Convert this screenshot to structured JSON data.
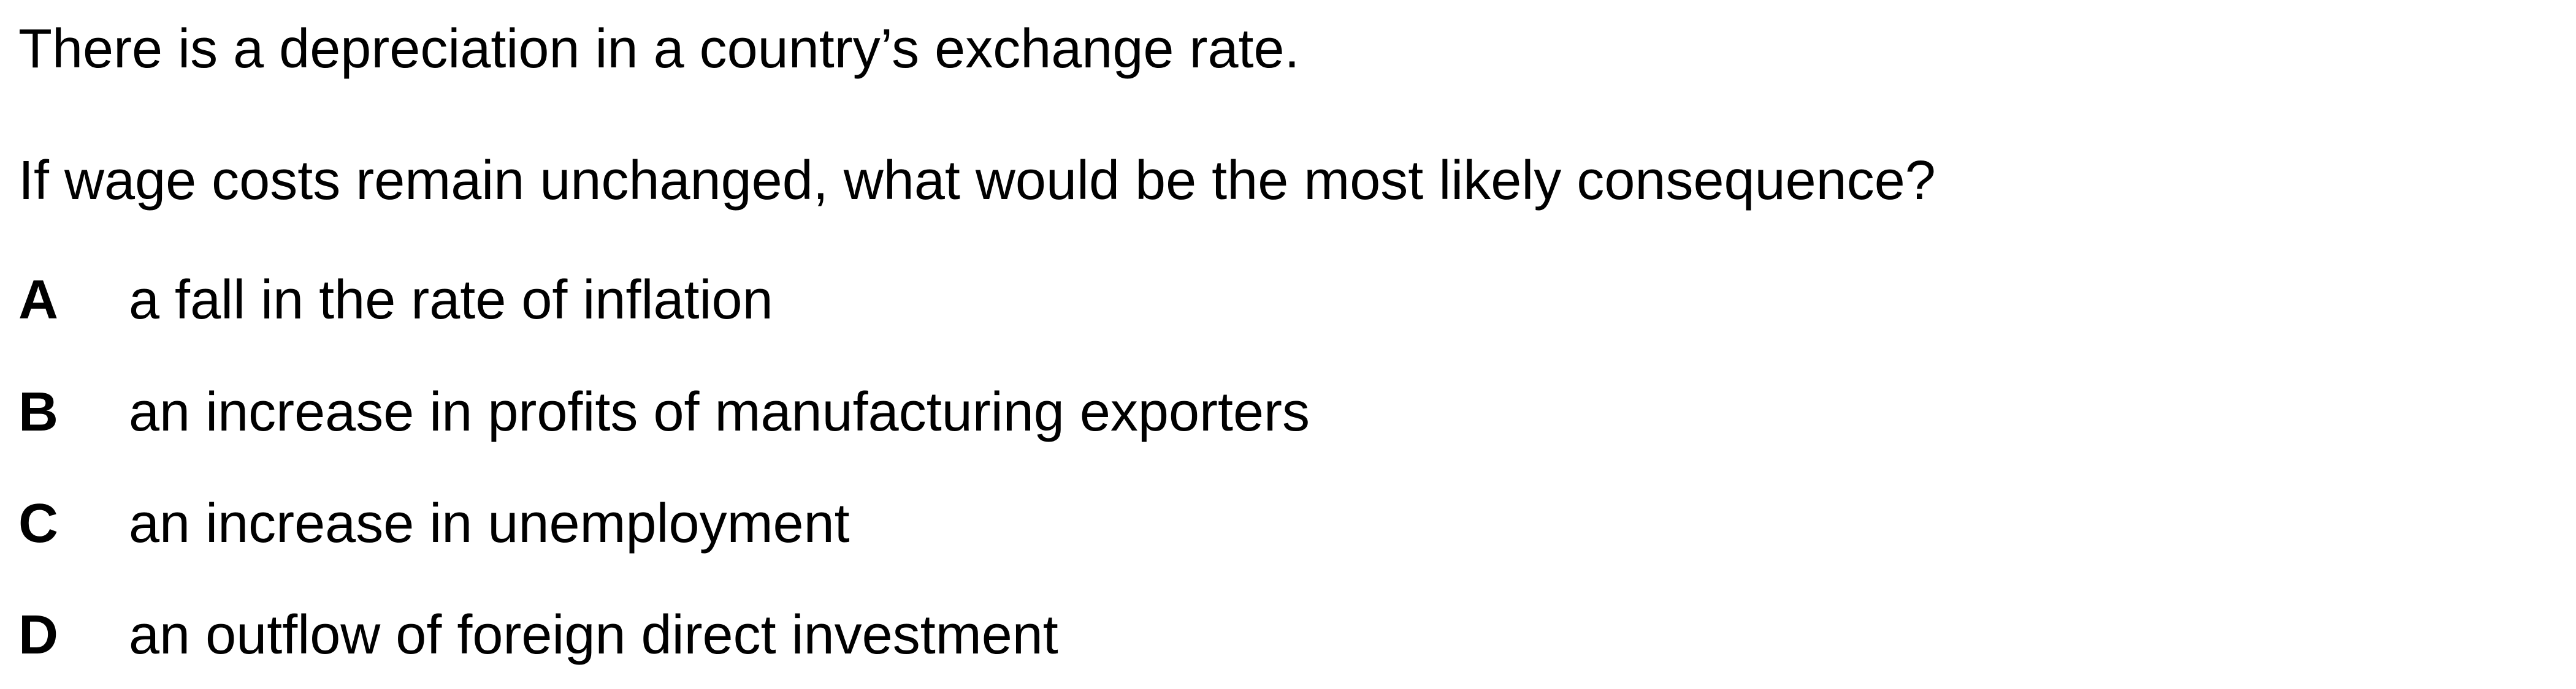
{
  "question": {
    "stem": "There is a depreciation in a country’s exchange rate.",
    "prompt": "If wage costs remain unchanged, what would be the most likely consequence?"
  },
  "options": [
    {
      "letter": "A",
      "text": "a fall in the rate of inflation"
    },
    {
      "letter": "B",
      "text": "an increase in profits of manufacturing exporters"
    },
    {
      "letter": "C",
      "text": "an increase in unemployment"
    },
    {
      "letter": "D",
      "text": "an outflow of foreign direct investment"
    }
  ]
}
